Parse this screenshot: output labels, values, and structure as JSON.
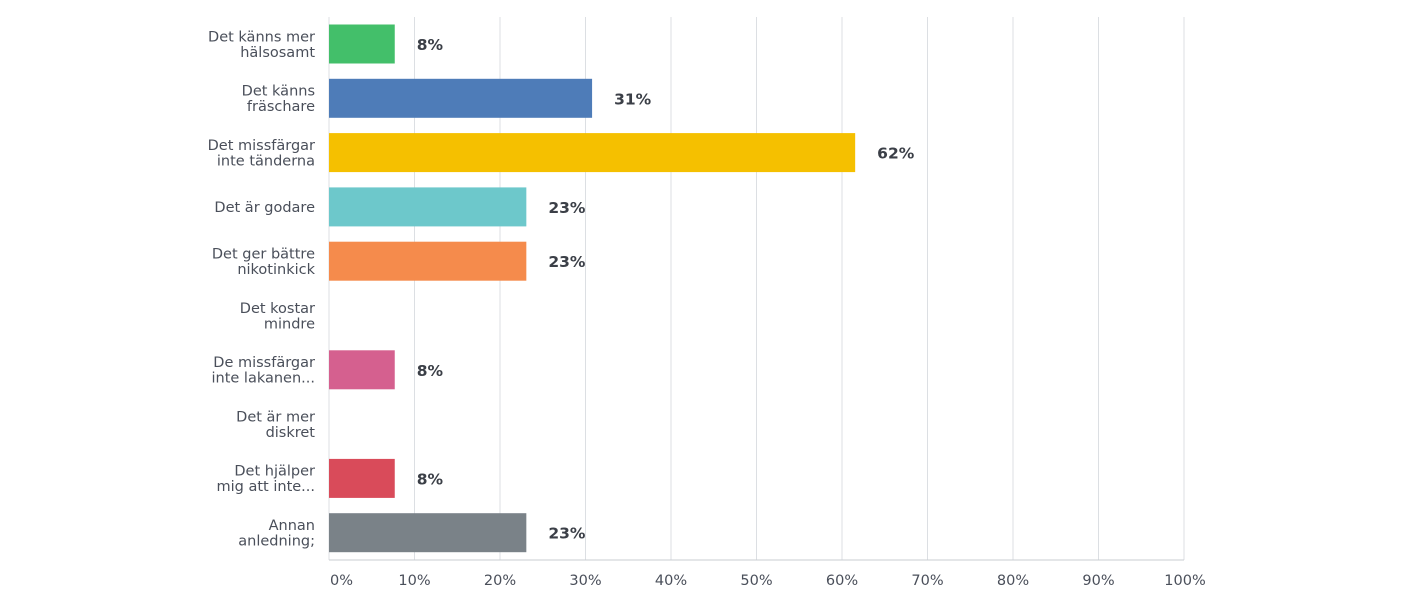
{
  "chart_data": {
    "type": "bar",
    "orientation": "horizontal",
    "categories": [
      [
        "Det känns mer",
        "hälsosamt"
      ],
      [
        "Det känns",
        "fräschare"
      ],
      [
        "Det missfärgar",
        "inte tänderna"
      ],
      [
        "Det är godare"
      ],
      [
        "Det ger bättre",
        "nikotinkick"
      ],
      [
        "Det kostar",
        "mindre"
      ],
      [
        "De missfärgar",
        "inte lakanen..."
      ],
      [
        "Det är mer",
        "diskret"
      ],
      [
        "Det hjälper",
        "mig att inte..."
      ],
      [
        "Annan",
        "anledning;"
      ]
    ],
    "values": [
      7.69,
      30.77,
      61.54,
      23.08,
      23.08,
      0,
      7.69,
      0,
      7.69,
      23.08
    ],
    "value_labels": [
      "8%",
      "31%",
      "62%",
      "23%",
      "23%",
      "",
      "8%",
      "",
      "8%",
      "23%"
    ],
    "colors": [
      "#43bf6a",
      "#4e7cb8",
      "#f5c000",
      "#6dc8cb",
      "#f58b4c",
      "#9a8bcf",
      "#d5608f",
      "#8fb955",
      "#d94b5a",
      "#7a8288"
    ],
    "xlim": [
      0,
      100
    ],
    "x_ticks": [
      "0%",
      "10%",
      "20%",
      "30%",
      "40%",
      "50%",
      "60%",
      "70%",
      "80%",
      "90%",
      "100%"
    ],
    "grid": true,
    "title": "",
    "xlabel": "",
    "ylabel": ""
  }
}
